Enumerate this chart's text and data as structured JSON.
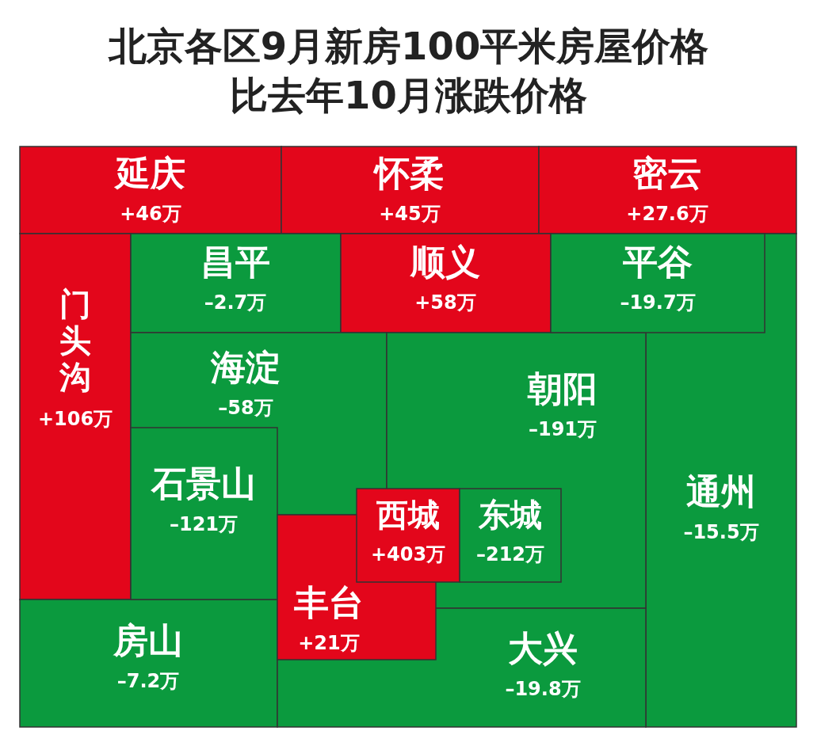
{
  "chart_data": {
    "type": "other",
    "title": "北京各区9月新房100平米房屋价格比去年10月涨跌价格",
    "categories": [
      "延庆",
      "怀柔",
      "密云",
      "门头沟",
      "昌平",
      "顺义",
      "平谷",
      "海淀",
      "朝阳",
      "通州",
      "石景山",
      "西城",
      "东城",
      "丰台",
      "房山",
      "大兴"
    ],
    "values": [
      46,
      45,
      27.6,
      106,
      -2.7,
      58,
      -19.7,
      -58,
      -191,
      -15.5,
      -121,
      403,
      -212,
      21,
      -7.2,
      -19.8
    ],
    "value_labels": [
      "+46万",
      "+45万",
      "+27.6万",
      "+106万",
      "–2.7万",
      "+58万",
      "–19.7万",
      "–58万",
      "–191万",
      "–15.5万",
      "–121万",
      "+403万",
      "–212万",
      "+21万",
      "–7.2万",
      "–19.8万"
    ],
    "colors": [
      "#e3061b",
      "#e3061b",
      "#e3061b",
      "#e3061b",
      "#0b9a3e",
      "#e3061b",
      "#0b9a3e",
      "#0b9a3e",
      "#0b9a3e",
      "#0b9a3e",
      "#0b9a3e",
      "#e3061b",
      "#0b9a3e",
      "#e3061b",
      "#0b9a3e",
      "#0b9a3e"
    ]
  }
}
